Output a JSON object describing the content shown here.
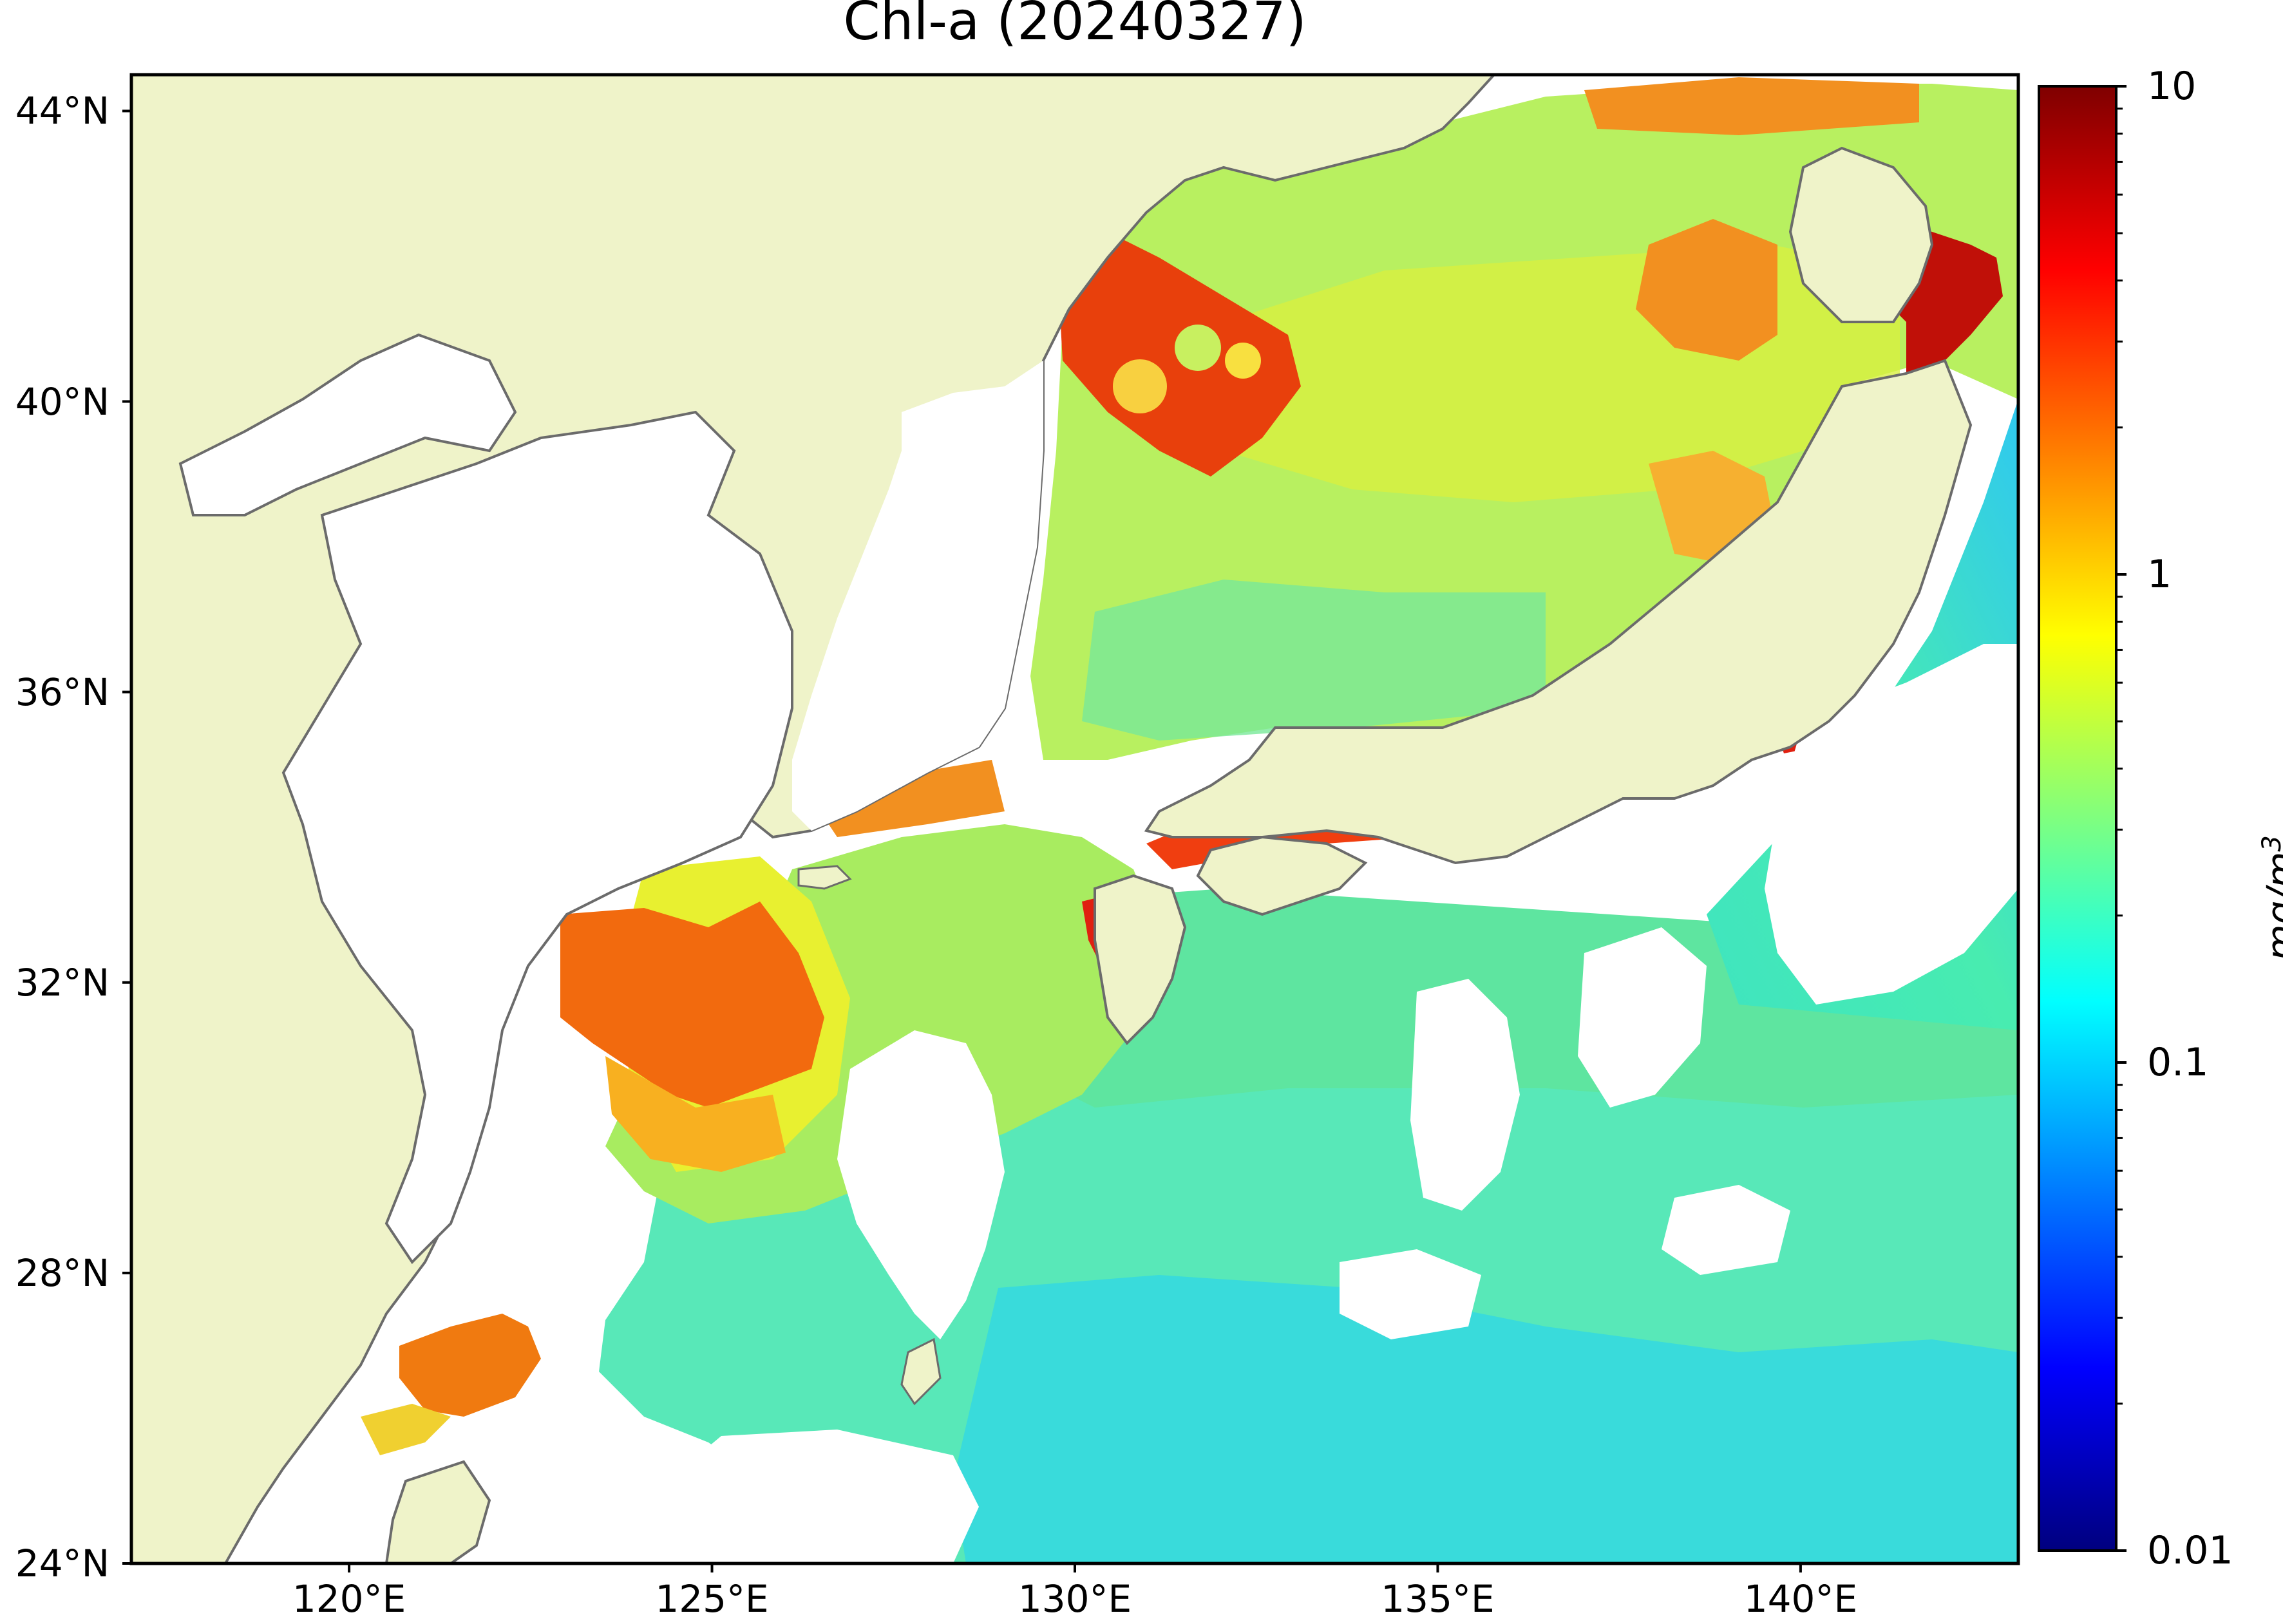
{
  "title": "Chl-a (20240327)",
  "map": {
    "extent": {
      "lon_min": 117,
      "lon_max": 143,
      "lat_min": 24,
      "lat_max": 44.5
    },
    "projection": "PlateCarree",
    "variable": "Chl-a",
    "date_label": "20240327",
    "colormap": "jet",
    "scale": "log",
    "colors": {
      "land": "#eff3c9",
      "coastline": "#6b6b6b",
      "no_data": "#ffffff",
      "frame": "#000000"
    }
  },
  "y_axis": {
    "ticks": [
      {
        "value": 44,
        "label": "44°N"
      },
      {
        "value": 40,
        "label": "40°N"
      },
      {
        "value": 36,
        "label": "36°N"
      },
      {
        "value": 32,
        "label": "32°N"
      },
      {
        "value": 28,
        "label": "28°N"
      },
      {
        "value": 24,
        "label": "24°N"
      }
    ]
  },
  "x_axis": {
    "ticks": [
      {
        "value": 120,
        "label": "120°E"
      },
      {
        "value": 125,
        "label": "125°E"
      },
      {
        "value": 130,
        "label": "130°E"
      },
      {
        "value": 135,
        "label": "135°E"
      },
      {
        "value": 140,
        "label": "140°E"
      }
    ]
  },
  "colorbar": {
    "unit": "mg/m",
    "unit_superscript": "3",
    "min": 0.01,
    "max": 10,
    "ticks": [
      {
        "value": 10,
        "label": "10"
      },
      {
        "value": 1,
        "label": "1"
      },
      {
        "value": 0.1,
        "label": "0.1"
      },
      {
        "value": 0.01,
        "label": "0.01"
      }
    ],
    "stops": [
      "#00007f",
      "#0000ff",
      "#007fff",
      "#00ffff",
      "#7fff7f",
      "#ffff00",
      "#ff7f00",
      "#ff0000",
      "#7f0000"
    ]
  }
}
